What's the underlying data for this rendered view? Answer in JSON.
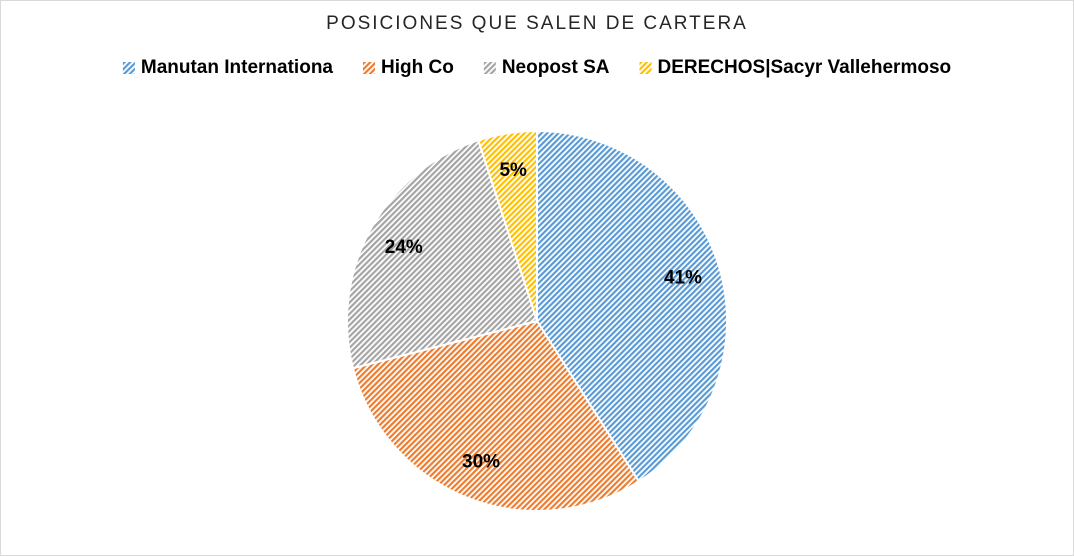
{
  "chart_data": {
    "type": "pie",
    "title": "POSICIONES QUE SALEN DE CARTERA",
    "categories": [
      "Manutan Internationa",
      "High Co",
      "Neopost SA",
      "DERECHOS|Sacyr Vallehermoso"
    ],
    "values": [
      41,
      30,
      24,
      5
    ],
    "value_labels": [
      "41%",
      "30%",
      "24%",
      "5%"
    ],
    "colors": [
      "#5b9bd5",
      "#ed7d31",
      "#a5a5a5",
      "#ffc000"
    ],
    "legend": "top"
  }
}
